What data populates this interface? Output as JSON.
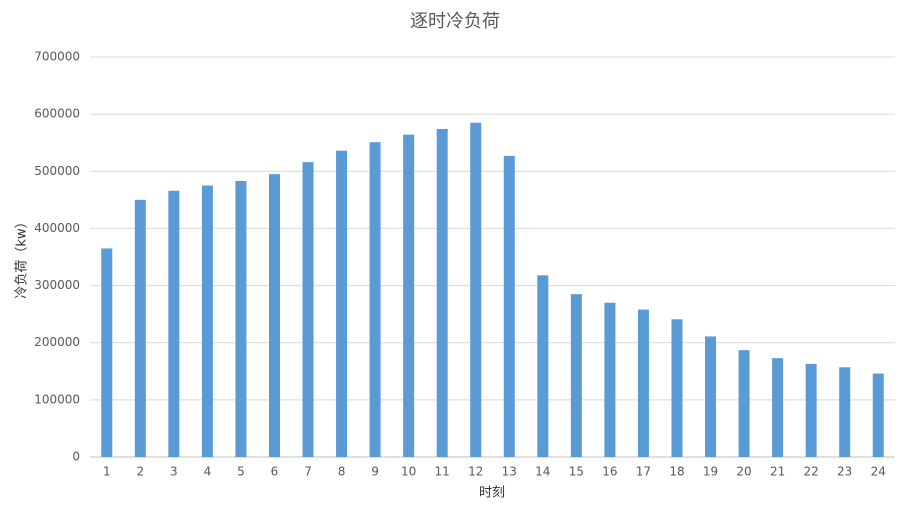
{
  "chart_data": {
    "type": "bar",
    "title": "逐时冷负荷",
    "x_label": "时刻",
    "y_label": "冷负荷（kw）",
    "categories": [
      "1",
      "2",
      "3",
      "4",
      "5",
      "6",
      "7",
      "8",
      "9",
      "10",
      "11",
      "12",
      "13",
      "14",
      "15",
      "16",
      "17",
      "18",
      "19",
      "20",
      "21",
      "22",
      "23",
      "24"
    ],
    "values": [
      365000,
      450000,
      466000,
      475000,
      483000,
      495000,
      516000,
      536000,
      551000,
      564000,
      574000,
      585000,
      527000,
      318000,
      285000,
      270000,
      258000,
      241000,
      211000,
      187000,
      173000,
      163000,
      157000,
      146000
    ],
    "color": "#5b9bd5",
    "ylim": [
      0,
      700000
    ],
    "yticks": [
      0,
      100000,
      200000,
      300000,
      400000,
      500000,
      600000,
      700000
    ],
    "grid": true
  }
}
